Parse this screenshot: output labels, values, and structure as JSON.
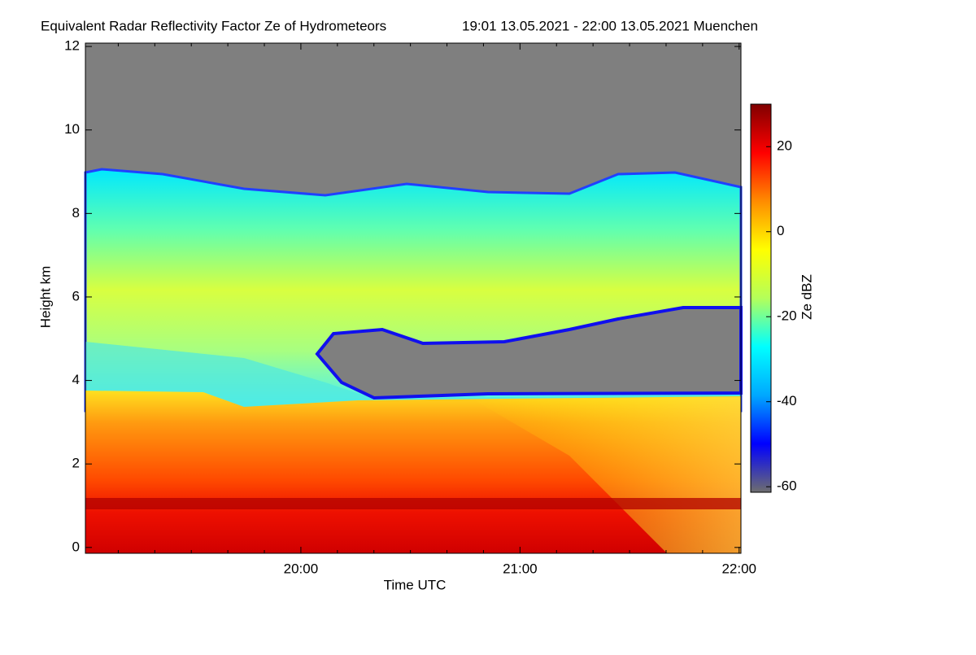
{
  "chart_data": {
    "type": "heatmap",
    "title": "Equivalent Radar Reflectivity Factor Ze of Hydrometeors",
    "subtitle": "19:01 13.05.2021 - 22:00 13.05.2021 Muenchen",
    "x_label": "Time UTC",
    "y_label": "Height km",
    "xlim": [
      1141,
      1320.5
    ],
    "xticks": [
      {
        "value": 1200,
        "label": "20:00"
      },
      {
        "value": 1260,
        "label": "21:00"
      },
      {
        "value": 1320,
        "label": "22:00"
      }
    ],
    "xminorticks": [
      1150,
      1160,
      1170,
      1180,
      1190,
      1210,
      1220,
      1230,
      1240,
      1250,
      1270,
      1280,
      1290,
      1300,
      1310
    ],
    "ylim": [
      -0.14,
      12.08
    ],
    "yticks": [
      0,
      2,
      4,
      6,
      8,
      10,
      12
    ],
    "colorbar": {
      "label": "Ze dBZ",
      "lim": [
        -61.3,
        30
      ],
      "ticks": [
        -60,
        -40,
        -20,
        0,
        20
      ],
      "colorscale": [
        "#6e6e6e",
        "#0000ff",
        "#00a8ff",
        "#00ffff",
        "#b4ff5a",
        "#ffff00",
        "#ff8c00",
        "#ff0000",
        "#800000"
      ]
    }
  }
}
